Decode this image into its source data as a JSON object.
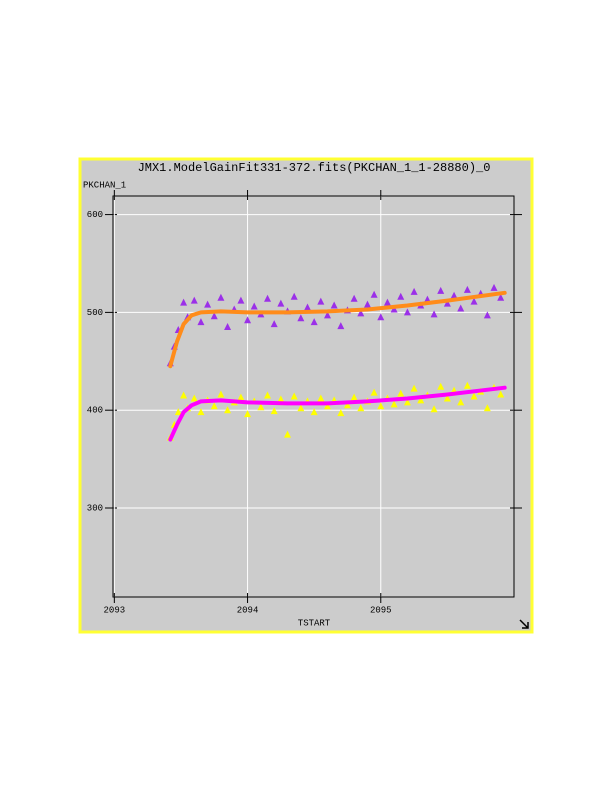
{
  "chart_data": {
    "type": "scatter",
    "title": "JMX1.ModelGainFit331-372.fits(PKCHAN_1_1-28880)_0",
    "y_label": "PKCHAN_1",
    "x_label": "TSTART",
    "xlim": [
      2092.99,
      2096.0
    ],
    "ylim": [
      209,
      619
    ],
    "xticks": [
      2093,
      2094,
      2095
    ],
    "yticks": [
      300,
      400,
      500,
      600
    ],
    "grid": true,
    "series": [
      {
        "kind": "scatter",
        "color": "#9b30e8",
        "x": [
          2093.42,
          2093.45,
          2093.48,
          2093.52,
          2093.55,
          2093.6,
          2093.65,
          2093.7,
          2093.75,
          2093.8,
          2093.85,
          2093.9,
          2093.95,
          2094.0,
          2094.05,
          2094.1,
          2094.15,
          2094.2,
          2094.25,
          2094.3,
          2094.35,
          2094.4,
          2094.45,
          2094.5,
          2094.55,
          2094.6,
          2094.65,
          2094.7,
          2094.75,
          2094.8,
          2094.85,
          2094.9,
          2094.95,
          2095.0,
          2095.05,
          2095.1,
          2095.15,
          2095.2,
          2095.25,
          2095.3,
          2095.35,
          2095.4,
          2095.45,
          2095.5,
          2095.55,
          2095.6,
          2095.65,
          2095.7,
          2095.75,
          2095.8,
          2095.85,
          2095.9
        ],
        "values": [
          448,
          465,
          482,
          510,
          495,
          512,
          490,
          508,
          496,
          515,
          485,
          503,
          512,
          492,
          506,
          498,
          514,
          488,
          509,
          501,
          516,
          494,
          505,
          490,
          511,
          497,
          507,
          486,
          502,
          514,
          499,
          508,
          518,
          495,
          510,
          503,
          516,
          500,
          521,
          507,
          513,
          498,
          522,
          509,
          517,
          504,
          523,
          511,
          519,
          497,
          525,
          515
        ]
      },
      {
        "kind": "scatter",
        "color": "#ffff00",
        "x": [
          2093.42,
          2093.45,
          2093.48,
          2093.52,
          2093.55,
          2093.6,
          2093.65,
          2093.7,
          2093.75,
          2093.8,
          2093.85,
          2093.9,
          2093.95,
          2094.0,
          2094.05,
          2094.1,
          2094.15,
          2094.2,
          2094.25,
          2094.3,
          2094.35,
          2094.4,
          2094.45,
          2094.5,
          2094.55,
          2094.6,
          2094.65,
          2094.7,
          2094.75,
          2094.8,
          2094.85,
          2094.9,
          2094.95,
          2095.0,
          2095.05,
          2095.1,
          2095.15,
          2095.2,
          2095.25,
          2095.3,
          2095.35,
          2095.4,
          2095.45,
          2095.5,
          2095.55,
          2095.6,
          2095.65,
          2095.7,
          2095.75,
          2095.8,
          2095.85,
          2095.9
        ],
        "values": [
          372,
          385,
          398,
          415,
          402,
          412,
          398,
          410,
          404,
          416,
          400,
          408,
          413,
          396,
          409,
          403,
          415,
          399,
          411,
          375,
          414,
          402,
          409,
          398,
          412,
          404,
          410,
          397,
          405,
          413,
          402,
          409,
          418,
          404,
          412,
          406,
          417,
          408,
          422,
          410,
          415,
          401,
          424,
          412,
          420,
          408,
          425,
          414,
          419,
          402,
          423,
          416
        ]
      },
      {
        "kind": "line",
        "color": "#ff8c1a",
        "x": [
          2093.42,
          2093.47,
          2093.52,
          2093.58,
          2093.65,
          2093.8,
          2094.0,
          2094.3,
          2094.6,
          2094.9,
          2095.2,
          2095.5,
          2095.93
        ],
        "values": [
          445,
          470,
          488,
          497,
          500,
          501,
          500,
          500,
          501,
          503,
          507,
          512,
          520
        ]
      },
      {
        "kind": "line",
        "color": "#ff00ff",
        "x": [
          2093.42,
          2093.47,
          2093.52,
          2093.58,
          2093.65,
          2093.8,
          2094.0,
          2094.3,
          2094.6,
          2094.9,
          2095.2,
          2095.5,
          2095.93
        ],
        "values": [
          370,
          385,
          398,
          405,
          409,
          410,
          408,
          407,
          407,
          409,
          412,
          416,
          423
        ]
      }
    ]
  }
}
